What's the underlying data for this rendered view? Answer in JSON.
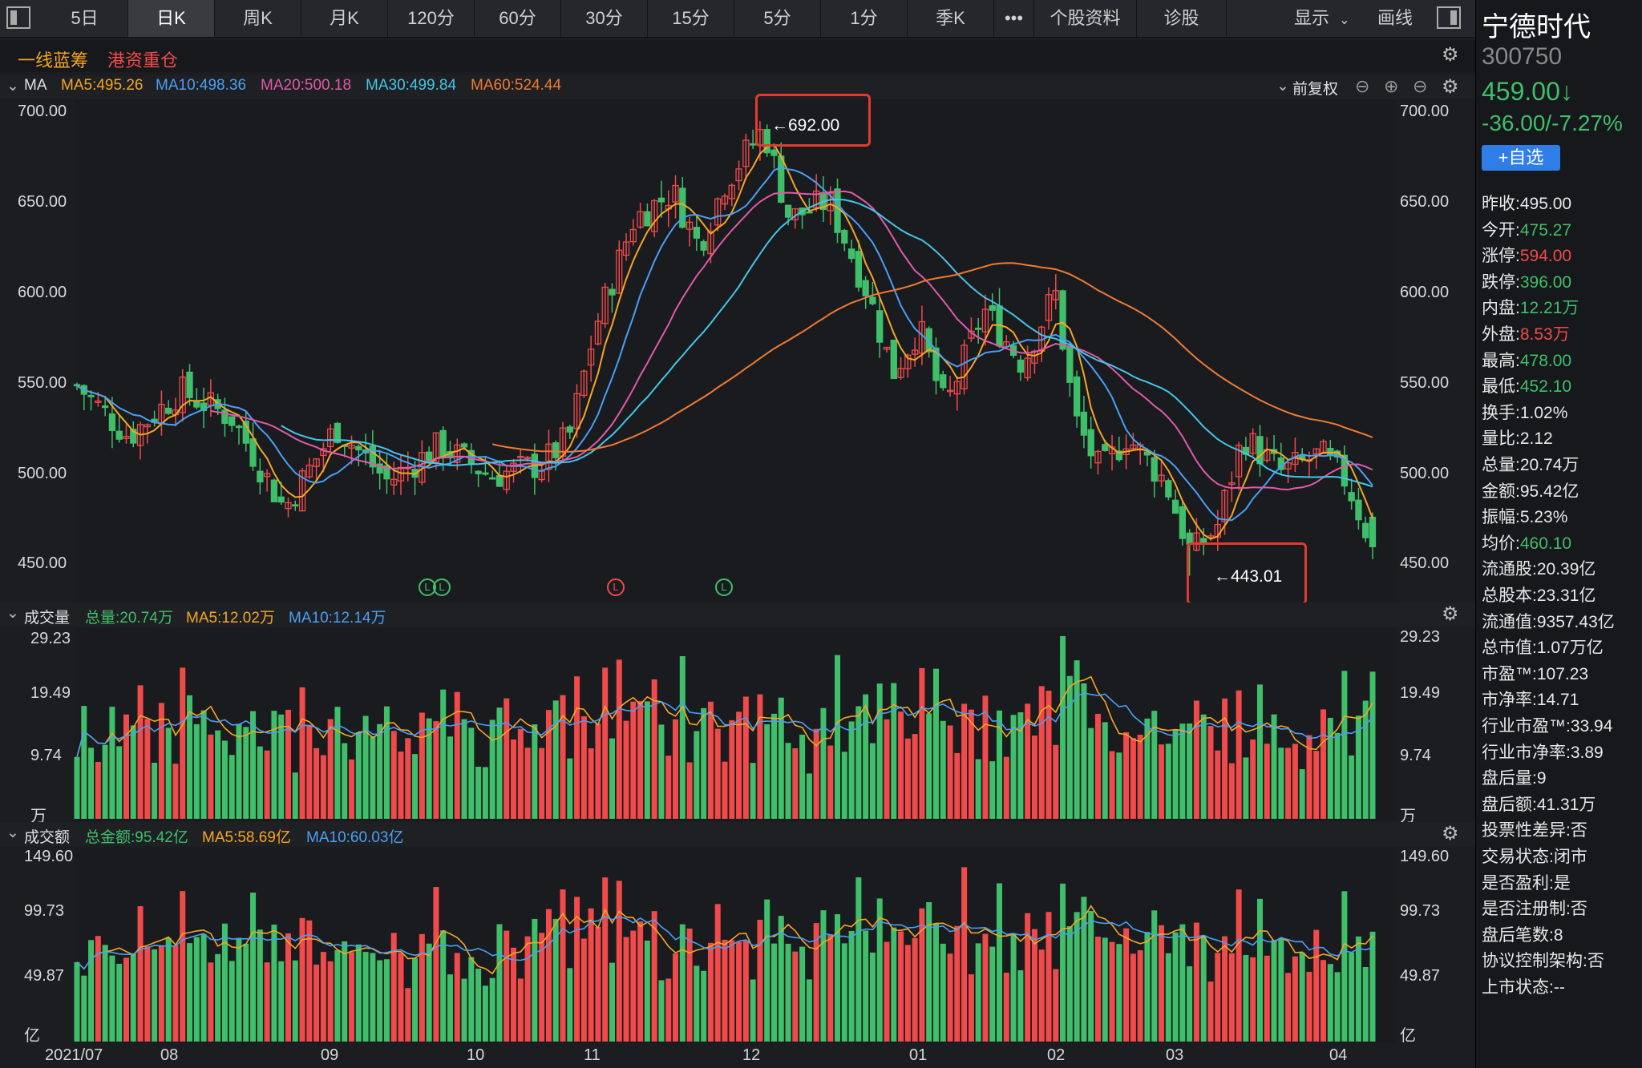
{
  "toolbar": {
    "tabs": [
      "5日",
      "日K",
      "周K",
      "月K",
      "120分",
      "60分",
      "30分",
      "15分",
      "5分",
      "1分",
      "季K",
      "•••",
      "个股资料",
      "诊股"
    ],
    "active_tab": "日K",
    "display_label": "显示",
    "draw_label": "画线"
  },
  "tags": {
    "tag1": "一线蓝筹",
    "tag2": "港资重仓"
  },
  "ma_bar": {
    "label": "MA",
    "ma5": "MA5:495.26",
    "ma10": "MA10:498.36",
    "ma20": "MA20:500.18",
    "ma30": "MA30:499.84",
    "ma60": "MA60:524.44",
    "adjust": "前复权"
  },
  "price_axis": [
    "700.00",
    "650.00",
    "600.00",
    "550.00",
    "500.00",
    "450.00"
  ],
  "annotations": {
    "high": "←692.00",
    "low": "←443.01"
  },
  "event_markers": [
    "L",
    "L",
    "L",
    "L"
  ],
  "volume": {
    "title": "成交量",
    "total": "总量:20.74万",
    "ma5": "MA5:12.02万",
    "ma10": "MA10:12.14万",
    "axis": [
      "29.23",
      "19.49",
      "9.74",
      "万"
    ]
  },
  "amount": {
    "title": "成交额",
    "total": "总金额:95.42亿",
    "ma5": "MA5:58.69亿",
    "ma10": "MA10:60.03亿",
    "axis": [
      "149.60",
      "99.73",
      "49.87",
      "亿"
    ]
  },
  "x_axis": [
    "2021/07",
    "08",
    "09",
    "10",
    "11",
    "12",
    "01",
    "02",
    "03",
    "04"
  ],
  "colors": {
    "up": "#f04a4a",
    "down": "#3fbf6a",
    "ma5": "#f5a623",
    "ma10": "#4a9ff5",
    "ma20": "#e05aa8",
    "ma30": "#43c6e8",
    "ma60": "#f07a32"
  },
  "stock": {
    "name": "宁德时代",
    "code": "300750",
    "price": "459.00↓",
    "change": "-36.00/-7.27%",
    "add_btn": "+自选"
  },
  "stats": [
    {
      "label": "昨收:",
      "value": "495.00",
      "color": "white"
    },
    {
      "label": "今开:",
      "value": "475.27",
      "color": "green"
    },
    {
      "label": "涨停:",
      "value": "594.00",
      "color": "red"
    },
    {
      "label": "跌停:",
      "value": "396.00",
      "color": "green"
    },
    {
      "label": "内盘:",
      "value": "12.21万",
      "color": "green"
    },
    {
      "label": "外盘:",
      "value": "8.53万",
      "color": "red"
    },
    {
      "label": "最高:",
      "value": "478.00",
      "color": "green"
    },
    {
      "label": "最低:",
      "value": "452.10",
      "color": "green"
    },
    {
      "label": "换手:",
      "value": "1.02%",
      "color": "white"
    },
    {
      "label": "量比:",
      "value": "2.12",
      "color": "white"
    },
    {
      "label": "总量:",
      "value": "20.74万",
      "color": "white"
    },
    {
      "label": "金额:",
      "value": "95.42亿",
      "color": "white"
    },
    {
      "label": "振幅:",
      "value": "5.23%",
      "color": "white"
    },
    {
      "label": "均价:",
      "value": "460.10",
      "color": "green"
    },
    {
      "label": "流通股:",
      "value": "20.39亿",
      "color": "white"
    },
    {
      "label": "总股本:",
      "value": "23.31亿",
      "color": "white"
    },
    {
      "label": "流通值:",
      "value": "9357.43亿",
      "color": "white"
    },
    {
      "label": "总市值:",
      "value": "1.07万亿",
      "color": "white"
    },
    {
      "label": "市盈™:",
      "value": "107.23",
      "color": "white"
    },
    {
      "label": "市净率:",
      "value": "14.71",
      "color": "white"
    },
    {
      "label": "行业市盈™:",
      "value": "33.94",
      "color": "white"
    },
    {
      "label": "行业市净率:",
      "value": "3.89",
      "color": "white"
    },
    {
      "label": "盘后量:",
      "value": "9",
      "color": "white"
    },
    {
      "label": "盘后额:",
      "value": "41.31万",
      "color": "white"
    },
    {
      "label": "投票性差异:",
      "value": "否",
      "color": "white"
    },
    {
      "label": "交易状态:",
      "value": "闭市",
      "color": "white"
    },
    {
      "label": "是否盈利:",
      "value": "是",
      "color": "white"
    },
    {
      "label": "是否注册制:",
      "value": "否",
      "color": "white"
    },
    {
      "label": "盘后笔数:",
      "value": "8",
      "color": "white"
    },
    {
      "label": "协议控制架构:",
      "value": "否",
      "color": "white"
    },
    {
      "label": "上市状态:",
      "value": "--",
      "color": "white"
    }
  ],
  "chart_data": {
    "type": "candlestick",
    "period": "daily",
    "y_range": [
      430,
      705
    ],
    "key_points": [
      {
        "label": "high",
        "value": 692.0
      },
      {
        "label": "low",
        "value": 443.01
      }
    ],
    "x_range": [
      "2021/07",
      "2022/04"
    ],
    "anchors": [
      {
        "t": 0,
        "p": 548
      },
      {
        "t": 0.04,
        "p": 520
      },
      {
        "t": 0.08,
        "p": 545
      },
      {
        "t": 0.12,
        "p": 530
      },
      {
        "t": 0.16,
        "p": 480
      },
      {
        "t": 0.2,
        "p": 525
      },
      {
        "t": 0.24,
        "p": 495
      },
      {
        "t": 0.28,
        "p": 515
      },
      {
        "t": 0.32,
        "p": 498
      },
      {
        "t": 0.36,
        "p": 505
      },
      {
        "t": 0.38,
        "p": 520
      },
      {
        "t": 0.4,
        "p": 580
      },
      {
        "t": 0.43,
        "p": 640
      },
      {
        "t": 0.46,
        "p": 655
      },
      {
        "t": 0.48,
        "p": 625
      },
      {
        "t": 0.5,
        "p": 660
      },
      {
        "t": 0.53,
        "p": 690
      },
      {
        "t": 0.55,
        "p": 640
      },
      {
        "t": 0.58,
        "p": 650
      },
      {
        "t": 0.61,
        "p": 600
      },
      {
        "t": 0.63,
        "p": 555
      },
      {
        "t": 0.65,
        "p": 580
      },
      {
        "t": 0.67,
        "p": 535
      },
      {
        "t": 0.7,
        "p": 590
      },
      {
        "t": 0.73,
        "p": 560
      },
      {
        "t": 0.755,
        "p": 600
      },
      {
        "t": 0.77,
        "p": 530
      },
      {
        "t": 0.79,
        "p": 500
      },
      {
        "t": 0.81,
        "p": 520
      },
      {
        "t": 0.84,
        "p": 495
      },
      {
        "t": 0.86,
        "p": 455
      },
      {
        "t": 0.88,
        "p": 470
      },
      {
        "t": 0.9,
        "p": 520
      },
      {
        "t": 0.93,
        "p": 500
      },
      {
        "t": 0.96,
        "p": 510
      },
      {
        "t": 0.98,
        "p": 495
      },
      {
        "t": 1.0,
        "p": 459
      }
    ]
  }
}
